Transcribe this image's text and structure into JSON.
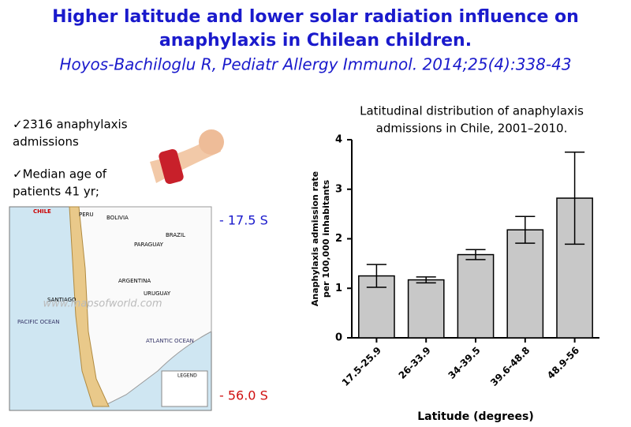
{
  "title": [
    "Higher latitude and lower solar radiation influence on",
    "anaphylaxis in Chilean children."
  ],
  "citation": "Hoyos-Bachiloglu R, Pediatr Allergy Immunol. 2014;25(4):338-43",
  "bullets": [
    [
      "✓2316 anaphylaxis",
      "admissions"
    ],
    [
      "✓Median age of",
      "patients 41 yr;"
    ]
  ],
  "map": {
    "labels": [
      "CHILE",
      "PERU",
      "BOLIVIA",
      "BRAZIL",
      "PARAGUAY",
      "ARGENTINA",
      "URUGUAY",
      "SANTIAGO",
      "PACIFIC OCEAN",
      "ATLANTIC OCEAN",
      "LEGEND",
      "www.mapsofworld.com"
    ]
  },
  "latitude_marks": [
    "- 17.5 S",
    "- 56.0 S"
  ],
  "chart_data": {
    "type": "bar",
    "title": [
      "Latitudinal distribution of anaphylaxis",
      "admissions in Chile, 2001–2010."
    ],
    "categories": [
      "17.5-25.9",
      "26-33.9",
      "34-39.5",
      "39.6-48.8",
      "48.9-56"
    ],
    "values": [
      1.25,
      1.17,
      1.68,
      2.18,
      2.82
    ],
    "errors": [
      0.23,
      0.06,
      0.1,
      0.27,
      0.93
    ],
    "color": "#c8c8c8",
    "ylim": [
      0,
      4
    ],
    "yticks": [
      0,
      1,
      2,
      3,
      4
    ],
    "xlabel": "Latitude (degrees)",
    "ylabel": [
      "Anaphylaxis admission rate",
      "per 100,000 inhabitants"
    ]
  }
}
